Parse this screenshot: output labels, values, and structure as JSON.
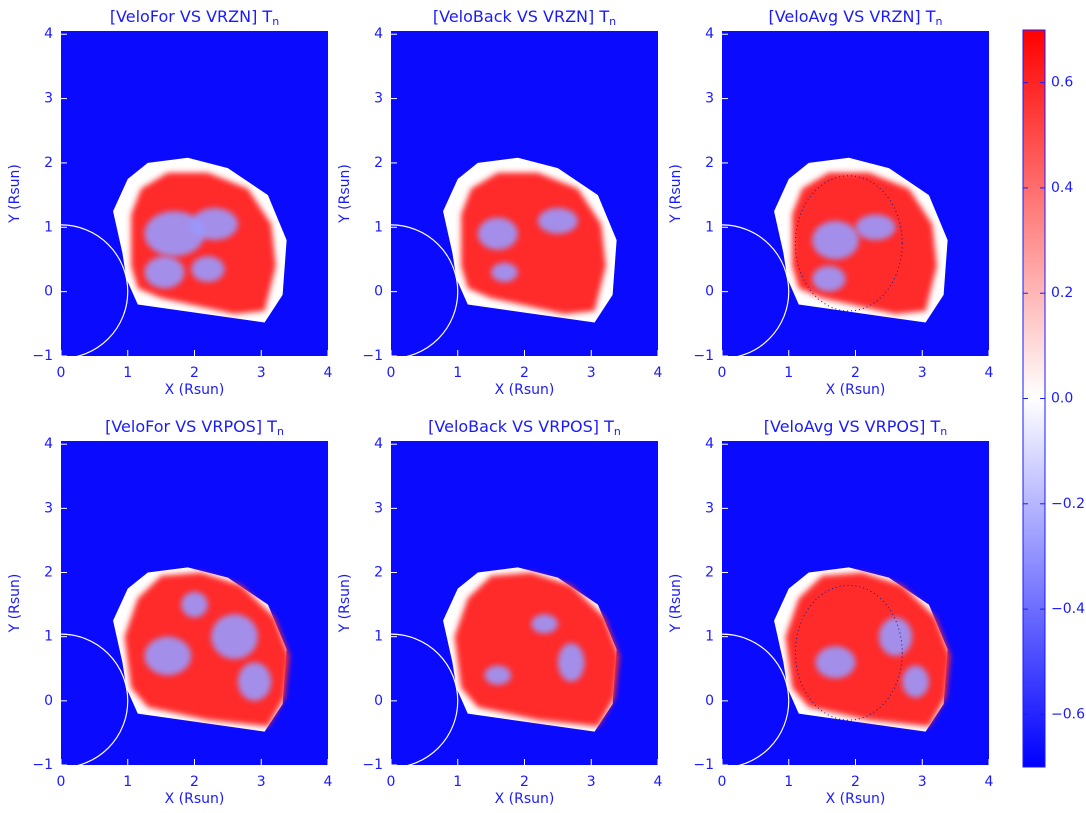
{
  "chart_data": [
    {
      "type": "heatmap",
      "title": "[VeloFor VS VRZN] T",
      "title_subscript": "n",
      "xlabel": "X (Rsun)",
      "ylabel": "Y (Rsun)",
      "xlim": [
        0,
        4
      ],
      "ylim": [
        -1,
        4.05
      ],
      "xticks": [
        0,
        1,
        2,
        3,
        4
      ],
      "yticks": [
        {
          "value": -1,
          "label": "−1"
        },
        0,
        1,
        2,
        3,
        4
      ]
    },
    {
      "type": "heatmap",
      "title": "[VeloBack VS VRZN] T",
      "title_subscript": "n",
      "xlabel": "X (Rsun)",
      "ylabel": "Y (Rsun)",
      "xlim": [
        0,
        4
      ],
      "ylim": [
        -1,
        4.05
      ],
      "xticks": [
        0,
        1,
        2,
        3,
        4
      ],
      "yticks": [
        {
          "value": -1,
          "label": "−1"
        },
        0,
        1,
        2,
        3,
        4
      ]
    },
    {
      "type": "heatmap",
      "title": "[VeloAvg VS VRZN] T",
      "title_subscript": "n",
      "xlabel": "X (Rsun)",
      "ylabel": "Y (Rsun)",
      "xlim": [
        0,
        4
      ],
      "ylim": [
        -1,
        4.05
      ],
      "xticks": [
        0,
        1,
        2,
        3,
        4
      ],
      "yticks": [
        {
          "value": -1,
          "label": "−1"
        },
        0,
        1,
        2,
        3,
        4
      ]
    },
    {
      "type": "heatmap",
      "title": "[VeloFor VS VRPOS] T",
      "title_subscript": "n",
      "xlabel": "X (Rsun)",
      "ylabel": "Y (Rsun)",
      "xlim": [
        0,
        4
      ],
      "ylim": [
        -1,
        4.05
      ],
      "xticks": [
        0,
        1,
        2,
        3,
        4
      ],
      "yticks": [
        {
          "value": -1,
          "label": "−1"
        },
        0,
        1,
        2,
        3,
        4
      ]
    },
    {
      "type": "heatmap",
      "title": "[VeloBack VS VRPOS] T",
      "title_subscript": "n",
      "xlabel": "X (Rsun)",
      "ylabel": "Y (Rsun)",
      "xlim": [
        0,
        4
      ],
      "ylim": [
        -1,
        4.05
      ],
      "xticks": [
        0,
        1,
        2,
        3,
        4
      ],
      "yticks": [
        {
          "value": -1,
          "label": "−1"
        },
        0,
        1,
        2,
        3,
        4
      ]
    },
    {
      "type": "heatmap",
      "title": "[VeloAvg VS VRPOS] T",
      "title_subscript": "n",
      "xlabel": "X (Rsun)",
      "ylabel": "Y (Rsun)",
      "xlim": [
        0,
        4
      ],
      "ylim": [
        -1,
        4.05
      ],
      "xticks": [
        0,
        1,
        2,
        3,
        4
      ],
      "yticks": [
        {
          "value": -1,
          "label": "−1"
        },
        0,
        1,
        2,
        3,
        4
      ]
    },
    {
      "type": "colorbar",
      "zlim": [
        -0.7,
        0.7
      ],
      "colors": [
        "#0000ff",
        "#ffffff",
        "#ff0000"
      ],
      "zticks": [
        {
          "value": -0.6,
          "label": "−0.6"
        },
        {
          "value": -0.4,
          "label": "−0.4"
        },
        {
          "value": -0.2,
          "label": "−0.2"
        },
        {
          "value": 0,
          "label": "0.0"
        },
        0.2,
        0.4,
        0.6
      ]
    }
  ]
}
